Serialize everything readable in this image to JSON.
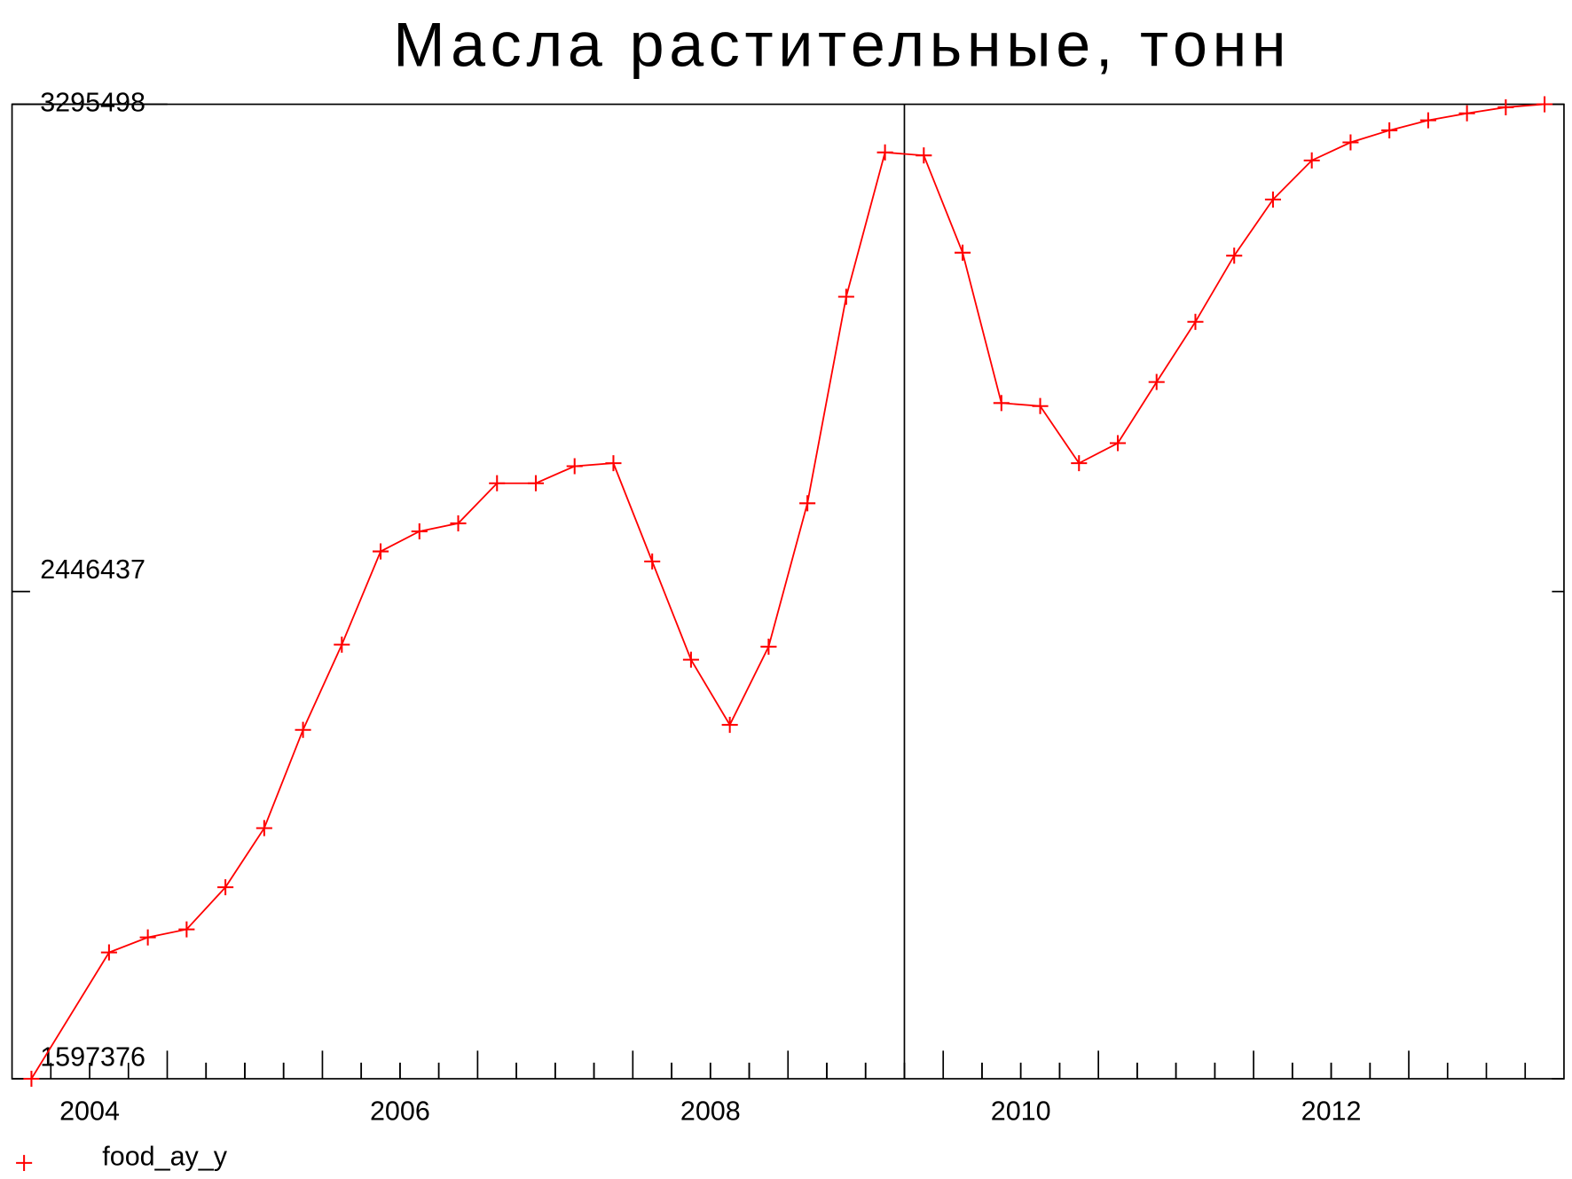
{
  "chart_data": {
    "type": "line",
    "title": "Масла растительные, тонн",
    "xlim": [
      2004,
      2014
    ],
    "xticks": [
      {
        "value": 2004.5,
        "label": "2004"
      },
      {
        "value": 2006.5,
        "label": "2006"
      },
      {
        "value": 2008.5,
        "label": "2008"
      },
      {
        "value": 2010.5,
        "label": "2010"
      },
      {
        "value": 2012.5,
        "label": "2012"
      }
    ],
    "xmajor": [
      2005,
      2006,
      2007,
      2008,
      2009,
      2010,
      2011,
      2012,
      2013
    ],
    "ylim": [
      1597376,
      3295498
    ],
    "yticks": [
      1597376,
      2446437,
      3295498
    ],
    "vline": 2009.75,
    "x": [
      2004.125,
      2004.625,
      2004.875,
      2005.125,
      2005.375,
      2005.625,
      2005.875,
      2006.125,
      2006.375,
      2006.625,
      2006.875,
      2007.125,
      2007.375,
      2007.625,
      2007.875,
      2008.125,
      2008.375,
      2008.625,
      2008.875,
      2009.125,
      2009.375,
      2009.625,
      2009.875,
      2010.125,
      2010.375,
      2010.625,
      2010.875,
      2011.125,
      2011.375,
      2011.625,
      2011.875,
      2012.125,
      2012.375,
      2012.625,
      2012.875,
      2013.125,
      2013.375,
      2013.625,
      2013.875
    ],
    "series": [
      {
        "name": "food_ay_y",
        "color": "#ff0000",
        "values": [
          1597376,
          1817498,
          1843703,
          1857679,
          1931053,
          2034126,
          2205332,
          2353827,
          2516298,
          2551238,
          2565214,
          2635094,
          2635094,
          2664793,
          2670034,
          2498828,
          2327622,
          2214067,
          2350333,
          2600154,
          2960036,
          3211604,
          3206363,
          3036904,
          2774854,
          2769613,
          2670034,
          2704974,
          2811541,
          2916361,
          3031663,
          3129495,
          3197628,
          3229074,
          3250038,
          3267508,
          3279737,
          3290219,
          3295498
        ]
      }
    ]
  }
}
